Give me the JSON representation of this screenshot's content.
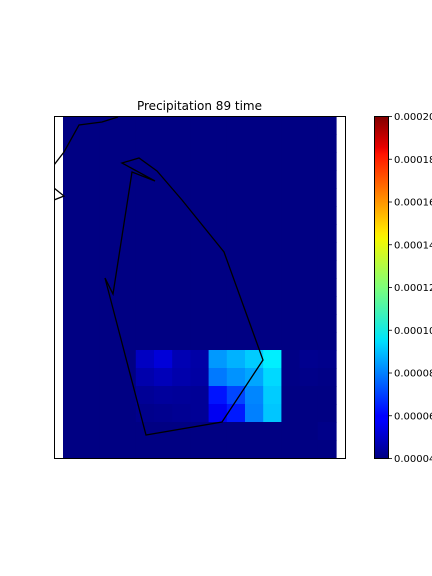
{
  "chart_data": {
    "type": "heatmap",
    "title": "Precipitation 89 time",
    "colormap": "jet",
    "colorbar": {
      "min": 4e-05,
      "max": 0.0002,
      "ticks": [
        4e-05,
        6e-05,
        8e-05,
        0.0001,
        0.00012,
        0.00014,
        0.00016,
        0.00018,
        0.0002
      ],
      "tick_labels": [
        "0.00004",
        "0.00006",
        "0.00008",
        "0.00010",
        "0.00012",
        "0.00014",
        "0.00016",
        "0.00018",
        "0.00020"
      ]
    },
    "grid": {
      "rows": 19,
      "cols": 15,
      "background_value": 4.05e-05,
      "cells": [
        {
          "row": 13,
          "col": 4,
          "value": 5.05e-05
        },
        {
          "row": 13,
          "col": 5,
          "value": 5.4e-05
        },
        {
          "row": 13,
          "col": 6,
          "value": 4.8e-05
        },
        {
          "row": 13,
          "col": 7,
          "value": 4.6e-05
        },
        {
          "row": 13,
          "col": 8,
          "value": 8.4e-05
        },
        {
          "row": 13,
          "col": 9,
          "value": 8.8e-05
        },
        {
          "row": 13,
          "col": 10,
          "value": 9.2e-05
        },
        {
          "row": 13,
          "col": 11,
          "value": 9.75e-05
        },
        {
          "row": 13,
          "col": 12,
          "value": 4.1e-05
        },
        {
          "row": 13,
          "col": 13,
          "value": 4.25e-05
        },
        {
          "row": 13,
          "col": 14,
          "value": 4.2e-05
        },
        {
          "row": 14,
          "col": 4,
          "value": 4.7e-05
        },
        {
          "row": 14,
          "col": 5,
          "value": 4.9e-05
        },
        {
          "row": 14,
          "col": 6,
          "value": 4.7e-05
        },
        {
          "row": 14,
          "col": 7,
          "value": 4.55e-05
        },
        {
          "row": 14,
          "col": 8,
          "value": 7.9e-05
        },
        {
          "row": 14,
          "col": 9,
          "value": 8.3e-05
        },
        {
          "row": 14,
          "col": 10,
          "value": 8.6e-05
        },
        {
          "row": 14,
          "col": 11,
          "value": 9.4e-05
        },
        {
          "row": 14,
          "col": 12,
          "value": 4.1e-05
        },
        {
          "row": 14,
          "col": 13,
          "value": 4.15e-05
        },
        {
          "row": 14,
          "col": 14,
          "value": 4.1e-05
        },
        {
          "row": 15,
          "col": 4,
          "value": 4.35e-05
        },
        {
          "row": 15,
          "col": 5,
          "value": 4.45e-05
        },
        {
          "row": 15,
          "col": 6,
          "value": 4.4e-05
        },
        {
          "row": 15,
          "col": 7,
          "value": 4.35e-05
        },
        {
          "row": 15,
          "col": 8,
          "value": 6.3e-05
        },
        {
          "row": 15,
          "col": 9,
          "value": 7.1e-05
        },
        {
          "row": 15,
          "col": 10,
          "value": 8.1e-05
        },
        {
          "row": 15,
          "col": 11,
          "value": 9.2e-05
        },
        {
          "row": 16,
          "col": 4,
          "value": 4.2e-05
        },
        {
          "row": 16,
          "col": 5,
          "value": 4.25e-05
        },
        {
          "row": 16,
          "col": 6,
          "value": 4.3e-05
        },
        {
          "row": 16,
          "col": 7,
          "value": 4.35e-05
        },
        {
          "row": 16,
          "col": 8,
          "value": 5.8e-05
        },
        {
          "row": 16,
          "col": 9,
          "value": 6.4e-05
        },
        {
          "row": 16,
          "col": 10,
          "value": 8e-05
        },
        {
          "row": 16,
          "col": 11,
          "value": 9.1e-05
        },
        {
          "row": 17,
          "col": 14,
          "value": 4.15e-05
        }
      ]
    },
    "grid_lines": false,
    "legend": "colorbar-right"
  }
}
